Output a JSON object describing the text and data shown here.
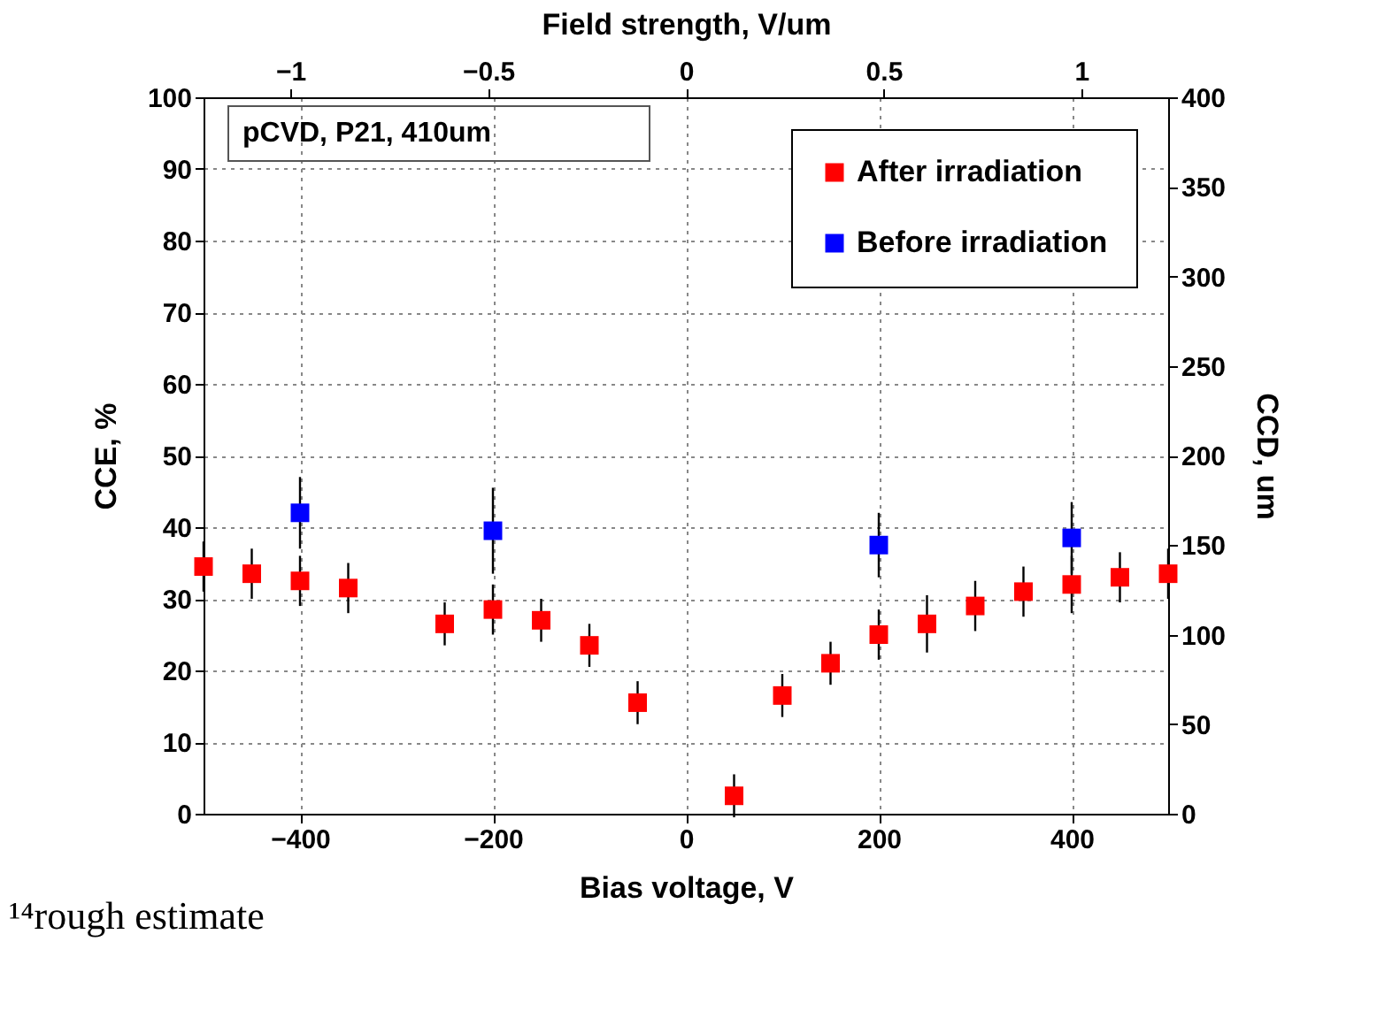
{
  "chart_data": {
    "type": "scatter",
    "xlabel": "Bias voltage, V",
    "ylabel": "CCE, %",
    "y2label": "CCD, um",
    "x2label": "Field strength, V/um",
    "x": [
      -500,
      -450,
      -400,
      -350,
      -250,
      -200,
      -150,
      -100,
      -50,
      50,
      100,
      150,
      200,
      250,
      300,
      350,
      400,
      450,
      500
    ],
    "series": [
      {
        "name": "After irradiation",
        "color": "#ff0000",
        "values": [
          34.5,
          33.5,
          32.5,
          31.5,
          26.5,
          28.5,
          27,
          23.5,
          15.5,
          2.5,
          16.5,
          21,
          25,
          26.5,
          29,
          31,
          32,
          33,
          33.5
        ],
        "errors": [
          3.5,
          3.5,
          3.5,
          3.5,
          3,
          3.5,
          3,
          3,
          3,
          3,
          3,
          3,
          3.5,
          4,
          3.5,
          3.5,
          4,
          3.5,
          3.5
        ]
      },
      {
        "name": "Before irradiation",
        "color": "#0000ff",
        "x": [
          -400,
          -200,
          200,
          400
        ],
        "values": [
          42,
          39.5,
          37.5,
          38.5
        ],
        "errors": [
          5,
          6,
          4.5,
          5
        ]
      }
    ],
    "xlim": [
      -500,
      500
    ],
    "xticks": [
      -400,
      -200,
      0,
      200,
      400
    ],
    "ylim": [
      0,
      100
    ],
    "yticks": [
      0,
      10,
      20,
      30,
      40,
      50,
      60,
      70,
      80,
      90,
      100
    ],
    "y2lim": [
      0,
      400
    ],
    "y2ticks": [
      0,
      50,
      100,
      150,
      200,
      250,
      300,
      350,
      400
    ],
    "x2lim": [
      -1.2195,
      1.2195
    ],
    "x2ticks": [
      -1,
      -0.5,
      0,
      0.5,
      1
    ],
    "grid": true,
    "legend": "top right",
    "marker": "square",
    "annotations": [
      "pCVD, P21, 410um",
      "¹⁴rough estimate"
    ]
  }
}
